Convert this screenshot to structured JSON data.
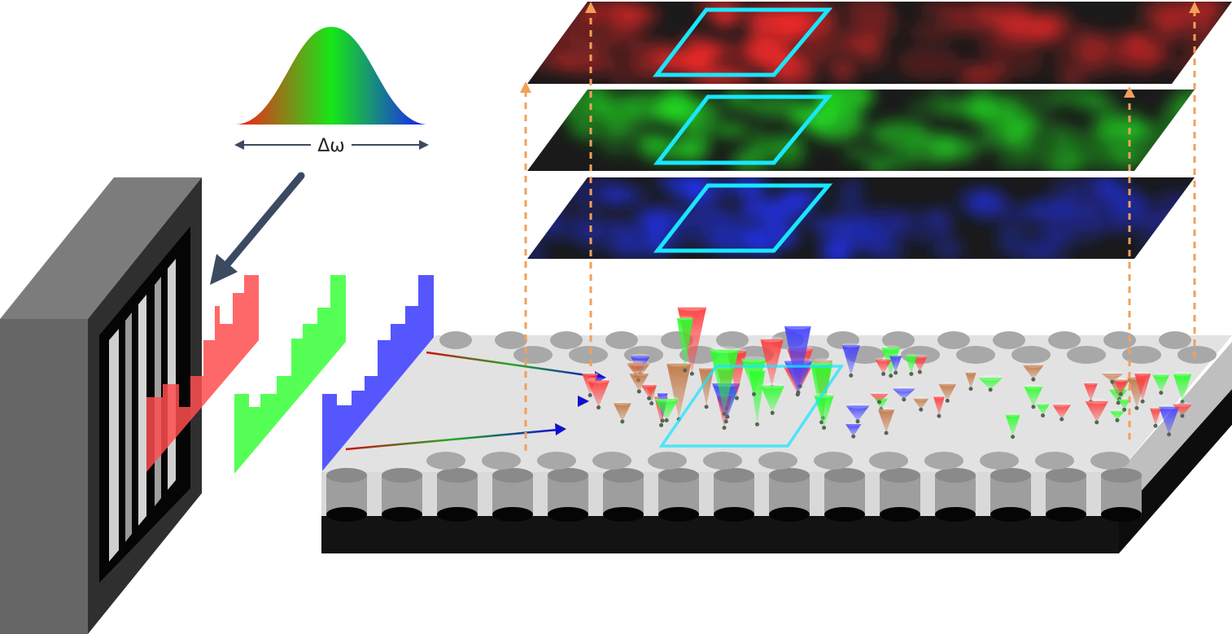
{
  "spectrum": {
    "label": "Δω",
    "colors": {
      "red": "#ff1a1a",
      "green": "#17e617",
      "blue": "#1a1aff"
    }
  },
  "stack_layers": [
    {
      "name": "red-layer",
      "color": "#ff2a2a"
    },
    {
      "name": "green-layer",
      "color": "#22ee22"
    },
    {
      "name": "blue-layer",
      "color": "#2233ff"
    }
  ],
  "pulse_shapes": [
    {
      "name": "red-pulse-shape",
      "color": "#ff4d4d"
    },
    {
      "name": "green-pulse-shape",
      "color": "#44ff44"
    },
    {
      "name": "blue-pulse-shape",
      "color": "#4444ff"
    }
  ],
  "colors": {
    "roi_highlight": "#19e6ff",
    "projection_guides": "#f2a05a",
    "arrow_dark": "#3b4a61",
    "grating_frame": "#333333"
  }
}
